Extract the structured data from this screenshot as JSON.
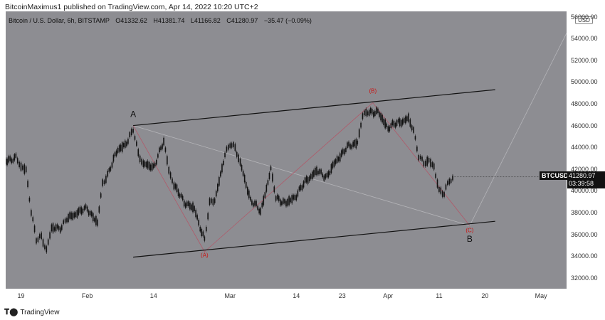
{
  "publisher": "BitcoinMaximus1 published on TradingView.com, Apr 14, 2022 10:20 UTC+2",
  "footer": {
    "logo_text": "TradingView",
    "icon": "tradingview-logo-icon"
  },
  "legend": {
    "title": "Bitcoin / U.S. Dollar, 6h, BITSTAMP",
    "o_label": "O",
    "o_value": "41332.62",
    "h_label": "H",
    "h_value": "41381.74",
    "l_label": "L",
    "l_value": "41166.82",
    "c_label": "C",
    "c_value": "41280.97",
    "change": "−35.47 (−0.09%)"
  },
  "currency": "USD",
  "symbol_tag": "BTCUSD",
  "price_tag": {
    "price": "41280.97",
    "countdown": "03:39:58"
  },
  "chart_data": {
    "type": "line",
    "title": "Bitcoin / U.S. Dollar, 6h, BITSTAMP",
    "xlabel": "",
    "ylabel": "",
    "ylim": [
      31000,
      56500
    ],
    "yticks": [
      "32000.00",
      "34000.00",
      "36000.00",
      "38000.00",
      "40000.00",
      "42000.00",
      "44000.00",
      "46000.00",
      "48000.00",
      "50000.00",
      "52000.00",
      "54000.00",
      "56000.00"
    ],
    "xticks": [
      {
        "label": "19",
        "date": "2022-01-19"
      },
      {
        "label": "Feb",
        "date": "2022-02-01"
      },
      {
        "label": "14",
        "date": "2022-02-14"
      },
      {
        "label": "Mar",
        "date": "2022-03-01"
      },
      {
        "label": "14",
        "date": "2022-03-14"
      },
      {
        "label": "23",
        "date": "2022-03-23"
      },
      {
        "label": "Apr",
        "date": "2022-04-01"
      },
      {
        "label": "11",
        "date": "2022-04-11"
      },
      {
        "label": "20",
        "date": "2022-04-20"
      },
      {
        "label": "May",
        "date": "2022-05-01"
      }
    ],
    "xrange": [
      "2022-01-16",
      "2022-05-06"
    ],
    "series": [
      {
        "values": [
          {
            "date": "2022-01-16",
            "y": 42800
          },
          {
            "date": "2022-01-18",
            "y": 43000
          },
          {
            "date": "2022-01-19",
            "y": 42200
          },
          {
            "date": "2022-01-20",
            "y": 42000
          },
          {
            "date": "2022-01-21",
            "y": 38000
          },
          {
            "date": "2022-01-22",
            "y": 35500
          },
          {
            "date": "2022-01-23",
            "y": 35800
          },
          {
            "date": "2022-01-24",
            "y": 34600
          },
          {
            "date": "2022-01-25",
            "y": 36500
          },
          {
            "date": "2022-01-27",
            "y": 36700
          },
          {
            "date": "2022-01-28",
            "y": 37400
          },
          {
            "date": "2022-01-30",
            "y": 38000
          },
          {
            "date": "2022-02-01",
            "y": 38400
          },
          {
            "date": "2022-02-03",
            "y": 37000
          },
          {
            "date": "2022-02-04",
            "y": 40700
          },
          {
            "date": "2022-02-05",
            "y": 41500
          },
          {
            "date": "2022-02-07",
            "y": 43800
          },
          {
            "date": "2022-02-09",
            "y": 44500
          },
          {
            "date": "2022-02-10",
            "y": 45700
          },
          {
            "date": "2022-02-11",
            "y": 43500
          },
          {
            "date": "2022-02-12",
            "y": 42400
          },
          {
            "date": "2022-02-14",
            "y": 42200
          },
          {
            "date": "2022-02-16",
            "y": 44500
          },
          {
            "date": "2022-02-17",
            "y": 42000
          },
          {
            "date": "2022-02-18",
            "y": 40500
          },
          {
            "date": "2022-02-20",
            "y": 39000
          },
          {
            "date": "2022-02-22",
            "y": 38300
          },
          {
            "date": "2022-02-24",
            "y": 35500
          },
          {
            "date": "2022-02-25",
            "y": 38800
          },
          {
            "date": "2022-02-26",
            "y": 39200
          },
          {
            "date": "2022-02-28",
            "y": 43200
          },
          {
            "date": "2022-03-01",
            "y": 44400
          },
          {
            "date": "2022-03-02",
            "y": 44000
          },
          {
            "date": "2022-03-03",
            "y": 42500
          },
          {
            "date": "2022-03-05",
            "y": 39200
          },
          {
            "date": "2022-03-07",
            "y": 38100
          },
          {
            "date": "2022-03-09",
            "y": 41900
          },
          {
            "date": "2022-03-10",
            "y": 39400
          },
          {
            "date": "2022-03-12",
            "y": 38800
          },
          {
            "date": "2022-03-14",
            "y": 39600
          },
          {
            "date": "2022-03-16",
            "y": 41000
          },
          {
            "date": "2022-03-18",
            "y": 41800
          },
          {
            "date": "2022-03-20",
            "y": 41300
          },
          {
            "date": "2022-03-22",
            "y": 42900
          },
          {
            "date": "2022-03-24",
            "y": 44000
          },
          {
            "date": "2022-03-26",
            "y": 44500
          },
          {
            "date": "2022-03-27",
            "y": 46800
          },
          {
            "date": "2022-03-28",
            "y": 47300
          },
          {
            "date": "2022-03-30",
            "y": 47200
          },
          {
            "date": "2022-04-01",
            "y": 45800
          },
          {
            "date": "2022-04-03",
            "y": 46300
          },
          {
            "date": "2022-04-05",
            "y": 46600
          },
          {
            "date": "2022-04-06",
            "y": 45500
          },
          {
            "date": "2022-04-07",
            "y": 43300
          },
          {
            "date": "2022-04-08",
            "y": 42500
          },
          {
            "date": "2022-04-09",
            "y": 42700
          },
          {
            "date": "2022-04-10",
            "y": 42300
          },
          {
            "date": "2022-04-11",
            "y": 40000
          },
          {
            "date": "2022-04-12",
            "y": 39700
          },
          {
            "date": "2022-04-13",
            "y": 41000
          },
          {
            "date": "2022-04-14",
            "y": 41280
          }
        ]
      }
    ],
    "annotations": [
      {
        "text": "A",
        "date": "2022-02-10",
        "y": 46800,
        "color": "#111111"
      },
      {
        "text": "(B)",
        "date": "2022-03-29",
        "y": 49000,
        "color": "#cc1111"
      },
      {
        "text": "(A)",
        "date": "2022-02-24",
        "y": 33900,
        "color": "#cc1111"
      },
      {
        "text": "(C)",
        "date": "2022-04-17",
        "y": 36200,
        "color": "#cc1111"
      },
      {
        "text": "B",
        "date": "2022-04-17",
        "y": 35300,
        "color": "#111111"
      }
    ],
    "channel_lines": [
      {
        "from": {
          "date": "2022-02-10",
          "y": 46000
        },
        "to": {
          "date": "2022-04-22",
          "y": 49300
        }
      },
      {
        "from": {
          "date": "2022-02-10",
          "y": 33900
        },
        "to": {
          "date": "2022-04-22",
          "y": 37200
        }
      }
    ],
    "wave_lines": [
      {
        "from": {
          "date": "2022-02-10",
          "y": 46000
        },
        "to": {
          "date": "2022-02-24",
          "y": 34400
        }
      },
      {
        "from": {
          "date": "2022-02-24",
          "y": 34400
        },
        "to": {
          "date": "2022-03-29",
          "y": 48100
        }
      },
      {
        "from": {
          "date": "2022-03-29",
          "y": 48100
        },
        "to": {
          "date": "2022-04-17",
          "y": 36800
        }
      }
    ],
    "projection_lines": [
      {
        "from": {
          "date": "2022-02-10",
          "y": 46000
        },
        "to": {
          "date": "2022-04-17",
          "y": 36800
        }
      },
      {
        "from": {
          "date": "2022-04-17",
          "y": 36800
        },
        "to": {
          "date": "2022-05-06",
          "y": 54500
        }
      }
    ],
    "colors": {
      "background": "#8d8d92",
      "candles": "#111111",
      "wave": "#b05a6a",
      "projection": "#b4b4b8",
      "channel": "#111111"
    },
    "grid": false
  }
}
